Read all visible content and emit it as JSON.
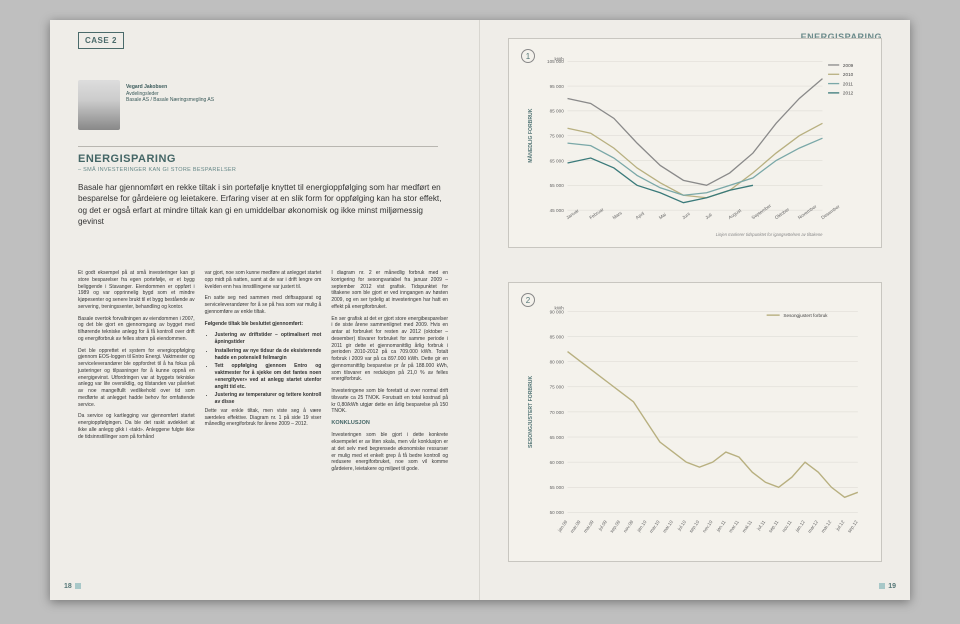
{
  "corner_left": "CASE 2",
  "corner_right": "ENERGISPARING",
  "bio": {
    "name": "Vegard Jakobsen",
    "role": "Avdelingsleder",
    "company": "Basale AS / Basale Næringsmegling AS"
  },
  "title": "ENERGISPARING",
  "subtitle": "– SMÅ INVESTERINGER KAN GI STORE BESPARELSER",
  "lead": "Basale har gjennomført en rekke tiltak i sin portefølje knyttet til energioppfølging som har medført en besparelse for gårdeiere og leietakere. Erfaring viser at en slik form for oppfølging kan ha stor effekt, og det er også erfart at mindre tiltak kan gi en umiddelbar økonomisk og ikke minst miljømessig gevinst",
  "col1": [
    "Et godt eksempel på at små investeringer kan gi store besparelser fra egen portefølje, er et bygg beliggende i Stavanger. Eiendommen er oppført i 1989 og var opprinnelig bygd som et mindre kjøpesenter og senere brukt til et bygg bestående av servering, treningssenter, behandling og kontor.",
    "Basale overtok forvaltningen av eiendommen i 2007, og det ble gjort en gjennomgang av bygget med tilhørende tekniske anlegg for å få kontroll over drift og energiforbruk av felles strøm på eiendommen.",
    "Det ble opprettet et system for energioppfølging gjennom EOS-loggen til Entro Energi. Vaktmester og serviceleverandører ble oppfordret til å ha fokus på justeringer og tilpasninger for å kunne oppnå en energigevinst. Utfordringen var at byggets tekniske anlegg var lite oversiktlig, og tilstanden var påvirket av noe mangelfullt vedlikehold over tid som medførte at anlegget hadde behov for omfattende service.",
    "Da service og kartlegging var gjennomført startet energioppfølgingen. Da ble det raskt avdekket at ikke alle anlegg gikk i «takt». Anleggene fulgte ikke de tidsinnstillinger som på forhånd"
  ],
  "col2": {
    "p1": "var gjort, noe som kunne medføre at anlegget startet opp midt på natten, samt at de var i drift lengre om kvelden enn hva innstillingene var justert til.",
    "p2": "En satte seg ned sammen med driftsapparat og serviceleverandører for å se på hva som var mulig å gjennomføre av enkle tiltak.",
    "bul_head": "Følgende tiltak ble besluttet gjennomført:",
    "bullets": [
      "Justering av driftstider – optimalisert mot åpningstider",
      "Installering av nye tidsur da de eksisterende hadde en potensiell feilmargin",
      "Tett oppfølging gjennom Entro og vaktmester for å sjekke om det fantes noen «energityver» ved at anlegg startet utenfor angitt tid etc.",
      "Justering av temperaturer og tettere kontroll av disse"
    ],
    "p3": "Dette var enkle tiltak, men viste seg å være særdeles effektive. Diagram nr. 1 på side 19 viser månedlig energiforbruk for årene 2009 – 2012."
  },
  "col3": {
    "p1": "I diagram nr. 2 er månedlig forbruk med en korrigering for sesongvariabel fra januar 2009 – september 2012 vist grafisk. Tidspunktet for tiltakene som ble gjort er ved inngangen av høsten 2009, og en ser tydelig at investeringen har hatt en effekt på energiforbruket.",
    "p2": "En ser grafisk at det er gjort store energibesparelser i de siste årene sammenlignet med 2009. Hvis en antar at forbruket for resten av 2012 (oktober – desember) tilsvarer forbruket for samme periode i 2011 gir dette et gjennomsnittlig årlig forbruk i perioden 2010-2012 på ca 709.000 kWh. Totalt forbruk i 2009 var på ca 897.000 kWh. Dette gir en gjennomsnittlig besparelse pr år på 188.000 kWh, som tilsvarer en reduksjon på 21,0 % av felles energiforbruk.",
    "p3": "Investeringene som ble foretatt ut over normal drift tilsvarte ca 25 TNOK. Forutsatt en total kostnad på kr 0,80/kWh utgjør dette en årlig besparelse på 150 TNOK.",
    "k_head": "KONKLUSJON",
    "k_body": "Investeringen som ble gjort i dette konkrete eksempelet er av liten skala, men vår konklusjon er at det selv med begrensede økonomiske ressurser er mulig med et enkelt grep å få bedre kontroll og redusere energiforbruket, noe som vil komme gårdeiere, leietakere og miljøet til gode."
  },
  "page_left": "18",
  "page_right": "19",
  "chart1": {
    "num": "1",
    "ylabel": "MÅNEDLIG FORBRUK",
    "yunit": "kWh",
    "ylim": [
      45000,
      105000
    ],
    "ytick_step": 10000,
    "months": [
      "Januar",
      "Februar",
      "Mars",
      "April",
      "Mai",
      "Juni",
      "Juli",
      "August",
      "September",
      "Oktober",
      "November",
      "Desember"
    ],
    "series": {
      "2012": [
        64000,
        66000,
        62000,
        55000,
        52000,
        48000,
        50000,
        53000,
        55000,
        null,
        null,
        null
      ],
      "2011": [
        72000,
        71000,
        66000,
        59000,
        54000,
        51000,
        52000,
        55000,
        58000,
        65000,
        70000,
        74000
      ],
      "2010": [
        78000,
        76000,
        70000,
        62000,
        56000,
        51000,
        50000,
        53000,
        60000,
        68000,
        75000,
        80000
      ],
      "2009": [
        90000,
        88000,
        82000,
        72000,
        63000,
        57000,
        55000,
        60000,
        68000,
        80000,
        90000,
        98000
      ]
    },
    "colors": {
      "2012": "#3a7a7a",
      "2011": "#7aa8a8",
      "2010": "#b8b080",
      "2009": "#8a8a8a"
    },
    "caption": "Linjen markerer tidspunktet for igangsettelsen av tiltakene",
    "bg": "#f4f2ec",
    "grid": "#d8d6d0"
  },
  "chart2": {
    "num": "2",
    "ylabel": "SESONGJUSTERT FORBRUK",
    "yunit": "kWh",
    "ylim": [
      50000,
      90000
    ],
    "ytick_step": 5000,
    "xlabels": [
      "jan.09",
      "mar.09",
      "mai.09",
      "jul.09",
      "sep.09",
      "nov.09",
      "jan.10",
      "mar.10",
      "mai.10",
      "jul.10",
      "sep.10",
      "nov.10",
      "jan.11",
      "mar.11",
      "mai.11",
      "jul.11",
      "sep.11",
      "nov.11",
      "jan.12",
      "mar.12",
      "mai.12",
      "jul.12",
      "sep.12"
    ],
    "values": [
      82000,
      80000,
      78000,
      76000,
      74000,
      72000,
      68000,
      64000,
      62000,
      60000,
      59000,
      60000,
      62000,
      61000,
      58000,
      56000,
      55000,
      57000,
      60000,
      58000,
      55000,
      53000,
      54000
    ],
    "legend": "Sesongjustert forbruk",
    "line_color": "#b8b080",
    "bg": "#f4f2ec",
    "grid": "#d8d6d0"
  }
}
